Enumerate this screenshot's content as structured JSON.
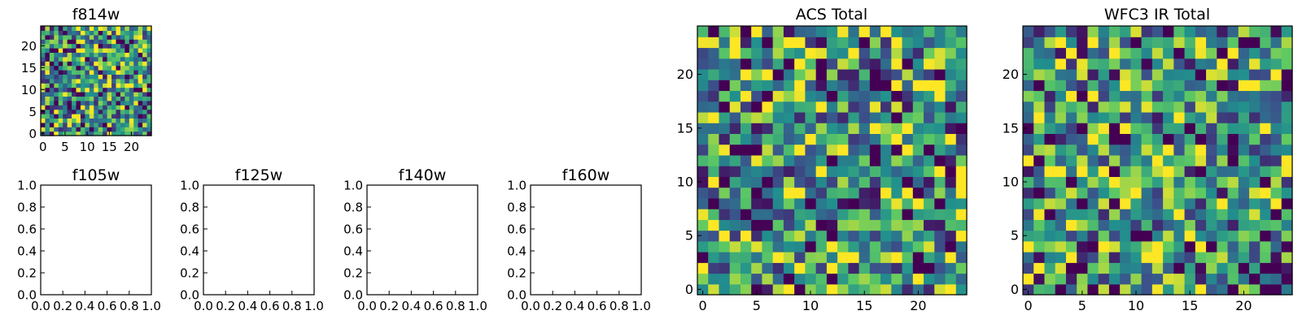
{
  "chart_data": [
    {
      "type": "heatmap",
      "title": "f814w",
      "grid_size": 25,
      "seed": 814,
      "xticks": [
        "0",
        "5",
        "10",
        "15",
        "20"
      ],
      "yticks": [
        "0",
        "5",
        "10",
        "15",
        "20"
      ],
      "xlim": [
        -0.5,
        24.5
      ],
      "ylim": [
        -0.5,
        24.5
      ]
    },
    {
      "type": "heatmap",
      "title": "f105w",
      "empty": true,
      "xticks": [
        "0.0",
        "0.2",
        "0.4",
        "0.6",
        "0.8",
        "1.0"
      ],
      "yticks": [
        "0.0",
        "0.2",
        "0.4",
        "0.6",
        "0.8",
        "1.0"
      ],
      "xlim": [
        0,
        1
      ],
      "ylim": [
        0,
        1
      ]
    },
    {
      "type": "heatmap",
      "title": "f125w",
      "empty": true,
      "xticks": [
        "0.0",
        "0.2",
        "0.4",
        "0.6",
        "0.8",
        "1.0"
      ],
      "yticks": [
        "0.0",
        "0.2",
        "0.4",
        "0.6",
        "0.8",
        "1.0"
      ],
      "xlim": [
        0,
        1
      ],
      "ylim": [
        0,
        1
      ]
    },
    {
      "type": "heatmap",
      "title": "f140w",
      "empty": true,
      "xticks": [
        "0.0",
        "0.2",
        "0.4",
        "0.6",
        "0.8",
        "1.0"
      ],
      "yticks": [
        "0.0",
        "0.2",
        "0.4",
        "0.6",
        "0.8",
        "1.0"
      ],
      "xlim": [
        0,
        1
      ],
      "ylim": [
        0,
        1
      ]
    },
    {
      "type": "heatmap",
      "title": "f160w",
      "empty": true,
      "xticks": [
        "0.0",
        "0.2",
        "0.4",
        "0.6",
        "0.8",
        "1.0"
      ],
      "yticks": [
        "0.0",
        "0.2",
        "0.4",
        "0.6",
        "0.8",
        "1.0"
      ],
      "xlim": [
        0,
        1
      ],
      "ylim": [
        0,
        1
      ]
    },
    {
      "type": "heatmap",
      "title": "ACS Total",
      "grid_size": 25,
      "seed": 4242,
      "xticks": [
        "0",
        "5",
        "10",
        "15",
        "20"
      ],
      "yticks": [
        "0",
        "5",
        "10",
        "15",
        "20"
      ],
      "xlim": [
        -0.5,
        24.5
      ],
      "ylim": [
        -0.5,
        24.5
      ]
    },
    {
      "type": "heatmap",
      "title": "WFC3 IR Total",
      "grid_size": 25,
      "seed": 3171,
      "xticks": [
        "0",
        "5",
        "10",
        "15",
        "20"
      ],
      "yticks": [
        "0",
        "5",
        "10",
        "15",
        "20"
      ],
      "xlim": [
        -0.5,
        24.5
      ],
      "ylim": [
        -0.5,
        24.5
      ]
    }
  ],
  "colors": {
    "colormap": [
      "#440154",
      "#3b528b",
      "#21908d",
      "#5dc963",
      "#fde725"
    ],
    "frame": "#000000",
    "background": "#ffffff"
  }
}
